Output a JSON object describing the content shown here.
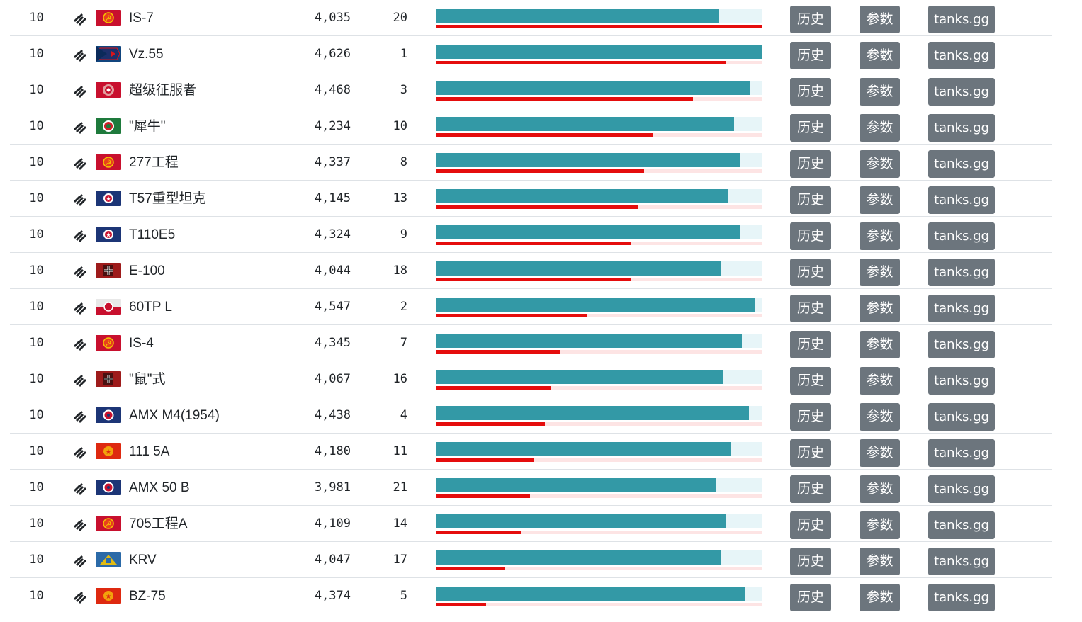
{
  "colors": {
    "bar_primary": "#3399a6",
    "bar_primary_bg": "#e7f5f8",
    "bar_secondary": "#e50d0d",
    "bar_secondary_bg": "#fde4e4",
    "button": "#6c757d"
  },
  "buttons": {
    "history_label": "历史",
    "params_label": "参数",
    "external_label": "tanks.gg"
  },
  "rows": [
    {
      "tier": "10",
      "class_icon": "heavy-tank-icon",
      "nation": "ussr",
      "name": "IS-7",
      "rating": "4,035",
      "rank": "20",
      "primary_pct": 87,
      "secondary_pct": 100
    },
    {
      "tier": "10",
      "class_icon": "heavy-tank-icon",
      "nation": "czech",
      "name": "Vz.55",
      "rating": "4,626",
      "rank": "1",
      "primary_pct": 100,
      "secondary_pct": 89
    },
    {
      "tier": "10",
      "class_icon": "heavy-tank-icon",
      "nation": "uk",
      "name": "超级征服者",
      "rating": "4,468",
      "rank": "3",
      "primary_pct": 96.5,
      "secondary_pct": 79
    },
    {
      "tier": "10",
      "class_icon": "heavy-tank-icon",
      "nation": "italy",
      "name": "\"犀牛\"",
      "rating": "4,234",
      "rank": "10",
      "primary_pct": 91.5,
      "secondary_pct": 66.5
    },
    {
      "tier": "10",
      "class_icon": "heavy-tank-icon",
      "nation": "ussr",
      "name": "277工程",
      "rating": "4,337",
      "rank": "8",
      "primary_pct": 93.5,
      "secondary_pct": 64
    },
    {
      "tier": "10",
      "class_icon": "heavy-tank-icon",
      "nation": "usa",
      "name": "T57重型坦克",
      "rating": "4,145",
      "rank": "13",
      "primary_pct": 89.5,
      "secondary_pct": 62
    },
    {
      "tier": "10",
      "class_icon": "heavy-tank-icon",
      "nation": "usa",
      "name": "T110E5",
      "rating": "4,324",
      "rank": "9",
      "primary_pct": 93.5,
      "secondary_pct": 60
    },
    {
      "tier": "10",
      "class_icon": "heavy-tank-icon",
      "nation": "germany",
      "name": "E-100",
      "rating": "4,044",
      "rank": "18",
      "primary_pct": 87.5,
      "secondary_pct": 60
    },
    {
      "tier": "10",
      "class_icon": "heavy-tank-icon",
      "nation": "poland",
      "name": "60TP L",
      "rating": "4,547",
      "rank": "2",
      "primary_pct": 98,
      "secondary_pct": 46.5
    },
    {
      "tier": "10",
      "class_icon": "heavy-tank-icon",
      "nation": "ussr",
      "name": "IS-4",
      "rating": "4,345",
      "rank": "7",
      "primary_pct": 94,
      "secondary_pct": 38
    },
    {
      "tier": "10",
      "class_icon": "heavy-tank-icon",
      "nation": "germany",
      "name": "\"鼠\"式",
      "rating": "4,067",
      "rank": "16",
      "primary_pct": 88,
      "secondary_pct": 35.5
    },
    {
      "tier": "10",
      "class_icon": "heavy-tank-icon",
      "nation": "france",
      "name": "AMX M4(1954)",
      "rating": "4,438",
      "rank": "4",
      "primary_pct": 96,
      "secondary_pct": 33.5
    },
    {
      "tier": "10",
      "class_icon": "heavy-tank-icon",
      "nation": "china",
      "name": "111 5A",
      "rating": "4,180",
      "rank": "11",
      "primary_pct": 90.5,
      "secondary_pct": 30
    },
    {
      "tier": "10",
      "class_icon": "heavy-tank-icon",
      "nation": "france",
      "name": "AMX 50 B",
      "rating": "3,981",
      "rank": "21",
      "primary_pct": 86,
      "secondary_pct": 29
    },
    {
      "tier": "10",
      "class_icon": "heavy-tank-icon",
      "nation": "ussr",
      "name": "705工程A",
      "rating": "4,109",
      "rank": "14",
      "primary_pct": 89,
      "secondary_pct": 26
    },
    {
      "tier": "10",
      "class_icon": "heavy-tank-icon",
      "nation": "sweden",
      "name": "KRV",
      "rating": "4,047",
      "rank": "17",
      "primary_pct": 87.5,
      "secondary_pct": 21
    },
    {
      "tier": "10",
      "class_icon": "heavy-tank-icon",
      "nation": "china",
      "name": "BZ-75",
      "rating": "4,374",
      "rank": "5",
      "primary_pct": 95,
      "secondary_pct": 15.5
    }
  ]
}
